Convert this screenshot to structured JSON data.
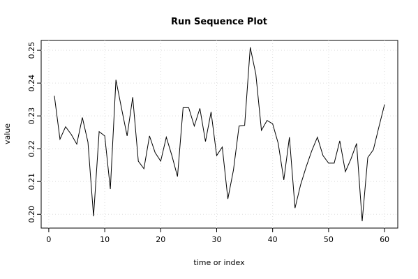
{
  "chart_data": {
    "type": "line",
    "title": "Run Sequence Plot",
    "x_label": "time or index",
    "y_label": "value",
    "x": [
      1,
      2,
      3,
      4,
      5,
      6,
      7,
      8,
      9,
      10,
      11,
      12,
      13,
      14,
      15,
      16,
      17,
      18,
      19,
      20,
      21,
      22,
      23,
      24,
      25,
      26,
      27,
      28,
      29,
      30,
      31,
      32,
      33,
      34,
      35,
      36,
      37,
      38,
      39,
      40,
      41,
      42,
      43,
      44,
      45,
      46,
      47,
      48,
      49,
      50,
      51,
      52,
      53,
      54,
      55,
      56,
      57,
      58,
      59,
      60
    ],
    "series": [
      {
        "name": "value",
        "color": "#000000",
        "values": [
          0.2361,
          0.2229,
          0.2267,
          0.2244,
          0.2214,
          0.2295,
          0.222,
          0.1994,
          0.2252,
          0.2239,
          0.2077,
          0.241,
          0.2323,
          0.2239,
          0.2357,
          0.2162,
          0.2139,
          0.2239,
          0.2188,
          0.2162,
          0.2235,
          0.2179,
          0.2115,
          0.2325,
          0.2325,
          0.2269,
          0.2323,
          0.2222,
          0.2312,
          0.2179,
          0.2205,
          0.2047,
          0.2135,
          0.2269,
          0.2271,
          0.2509,
          0.2427,
          0.2256,
          0.2286,
          0.2276,
          0.2216,
          0.2105,
          0.2235,
          0.2019,
          0.209,
          0.2145,
          0.2194,
          0.2235,
          0.2179,
          0.2156,
          0.2156,
          0.2224,
          0.213,
          0.2169,
          0.2216,
          0.1979,
          0.2173,
          0.2197,
          0.2267,
          0.2335
        ]
      }
    ],
    "xlim": [
      -1.36,
      62.36
    ],
    "xticks": [
      0,
      10,
      20,
      30,
      40,
      50,
      60
    ],
    "ylim": [
      0.1958,
      0.253
    ],
    "yticks": [
      {
        "value": 0.2,
        "label": "0.20"
      },
      {
        "value": 0.21,
        "label": "0.21"
      },
      {
        "value": 0.22,
        "label": "0.22"
      },
      {
        "value": 0.23,
        "label": "0.23"
      },
      {
        "value": 0.24,
        "label": "0.24"
      },
      {
        "value": 0.25,
        "label": "0.25"
      }
    ],
    "grid": true
  }
}
